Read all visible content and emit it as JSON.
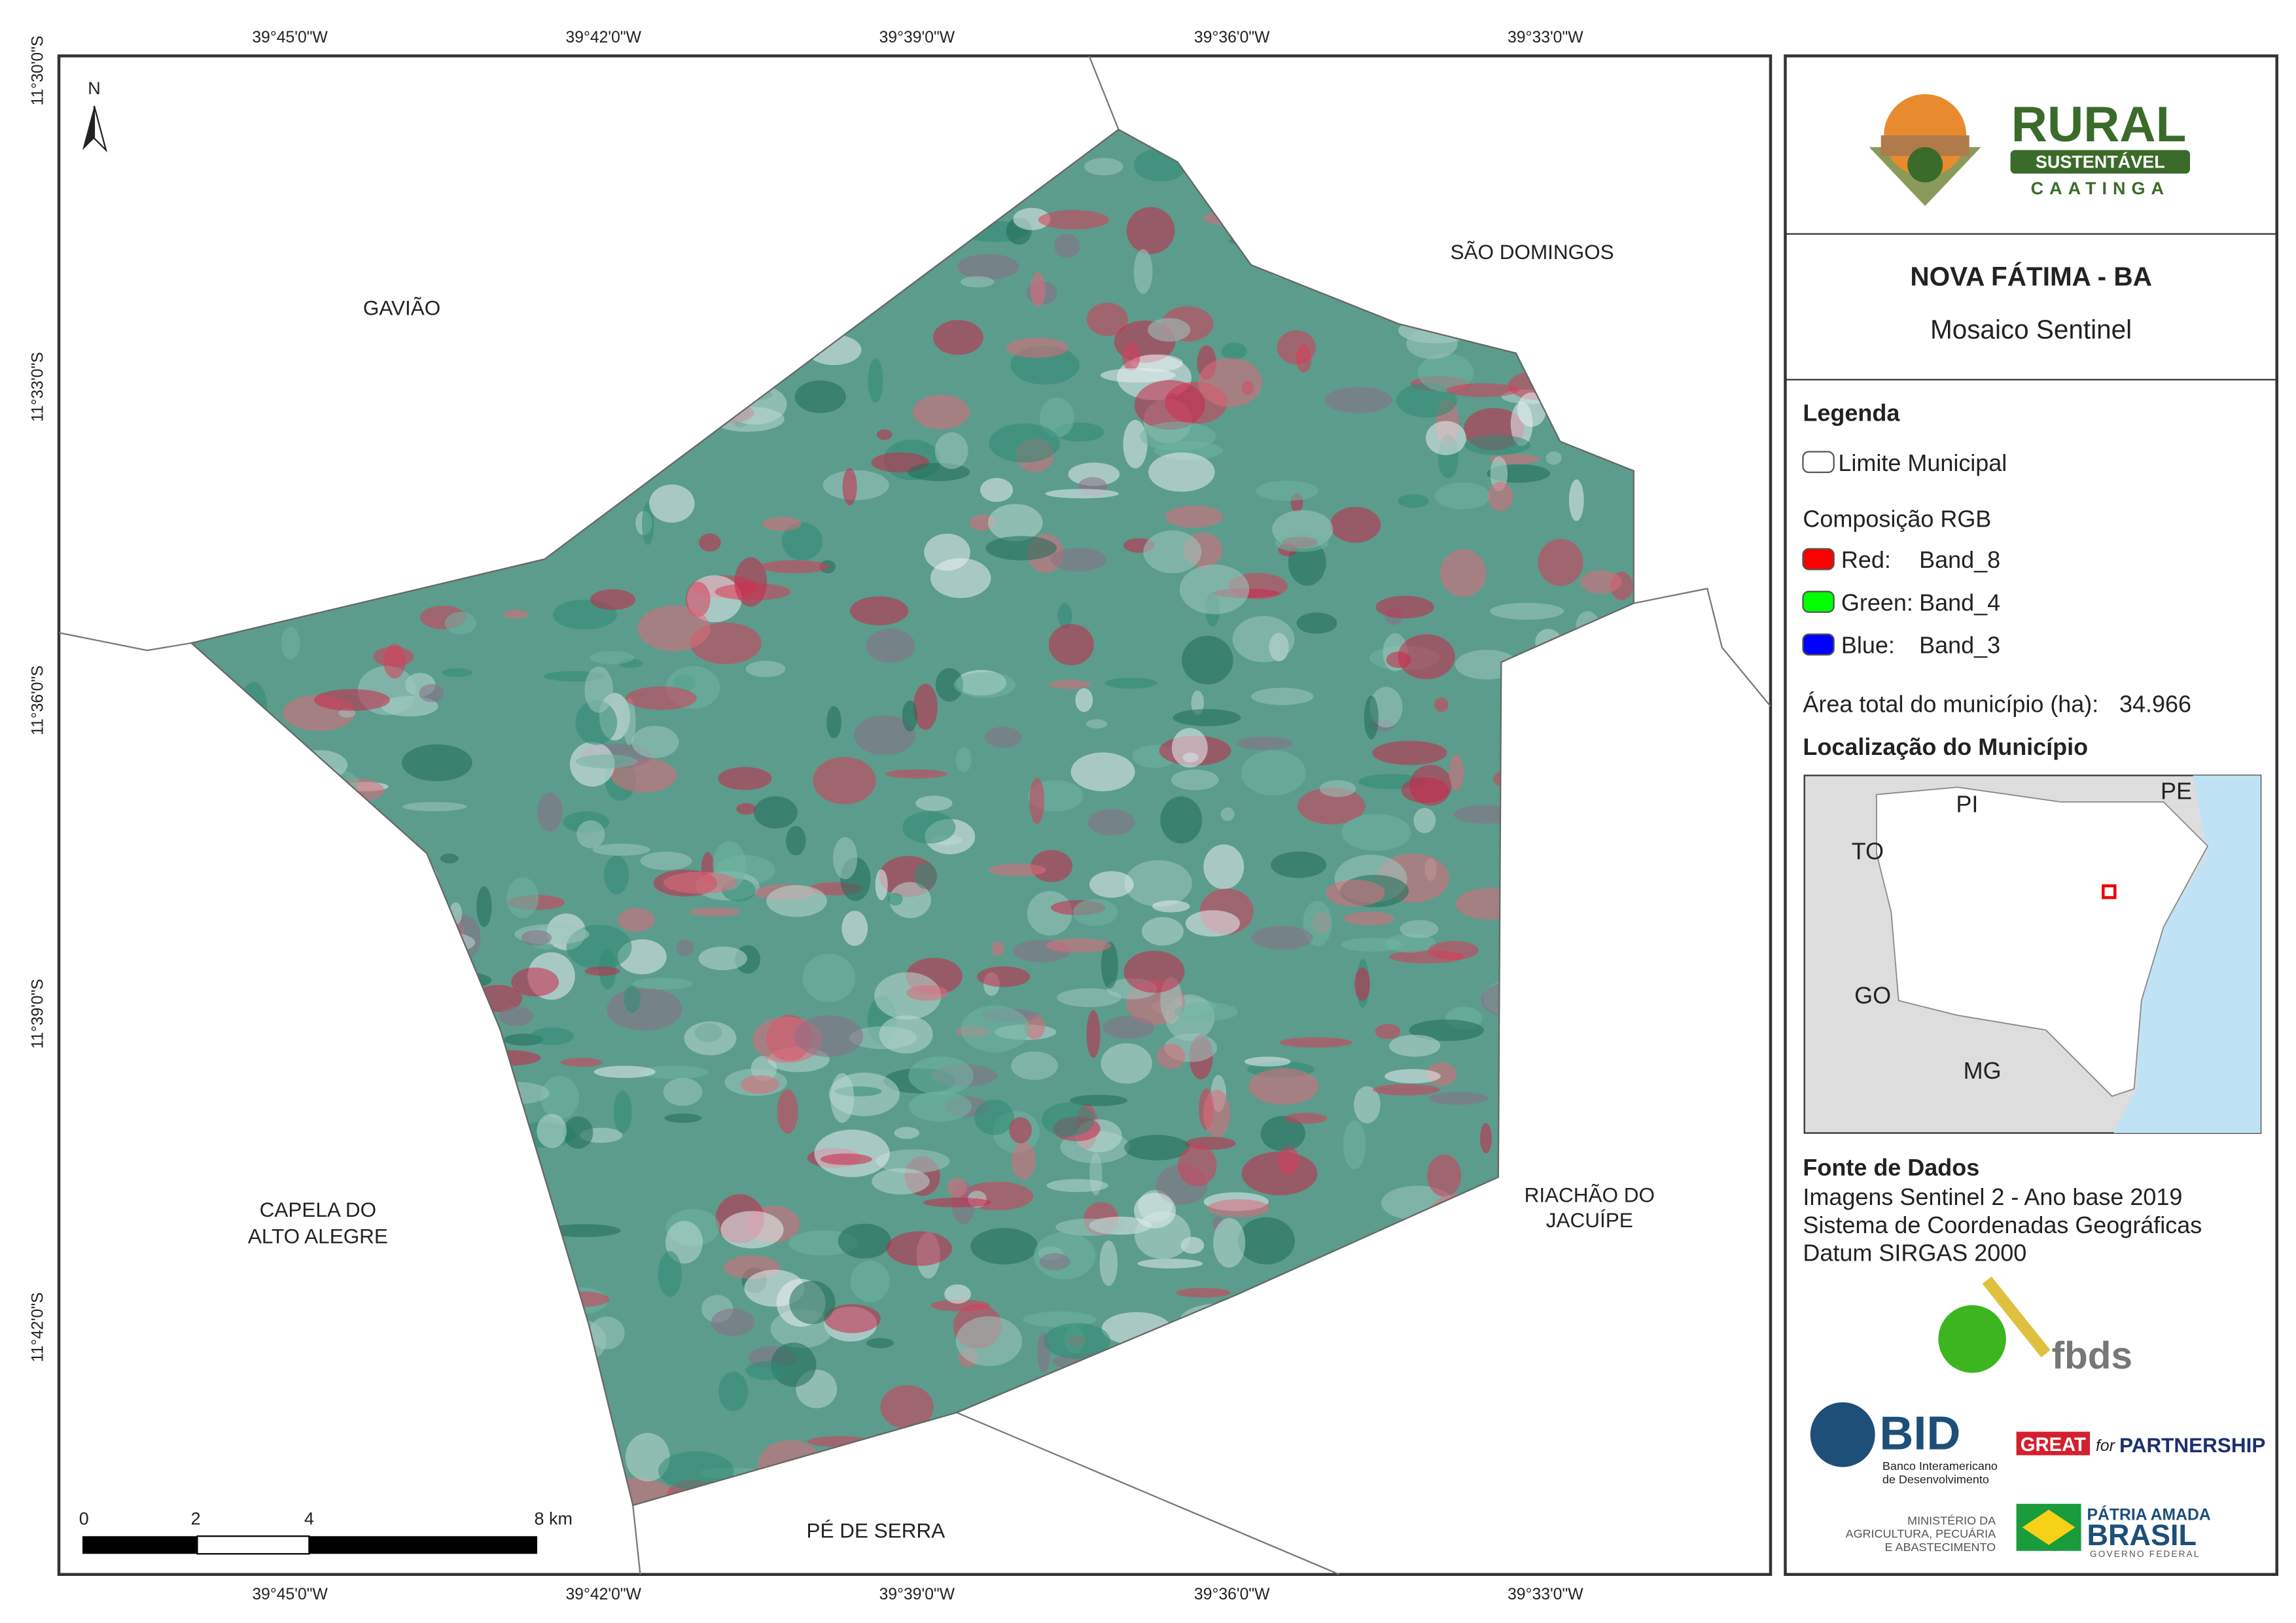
{
  "map": {
    "north": "N",
    "lon_labels": [
      "39°45'0\"W",
      "39°42'0\"W",
      "39°39'0\"W",
      "39°36'0\"W",
      "39°33'0\"W"
    ],
    "lat_labels": [
      "11°30'0\"S",
      "11°33'0\"S",
      "11°36'0\"S",
      "11°39'0\"S",
      "11°42'0\"S"
    ],
    "neighbors": {
      "gaviao": "GAVIÃO",
      "sao_domingos": "SÃO DOMINGOS",
      "capela": [
        "CAPELA DO",
        "ALTO ALEGRE"
      ],
      "riachao": [
        "RIACHÃO DO",
        "JACUÍPE"
      ],
      "pe_de_serra": "PÉ DE SERRA"
    },
    "scale": [
      "0",
      "2",
      "4",
      "8 km"
    ]
  },
  "panel": {
    "logo": {
      "rural": "RURAL",
      "sustentavel": "SUSTENTÁVEL",
      "caatinga": "CAATINGA"
    },
    "title": "NOVA FÁTIMA - BA",
    "subtitle": "Mosaico Sentinel",
    "legend": {
      "heading": "Legenda",
      "limit": "Limite Municipal",
      "rgb": "Composição RGB",
      "bands": [
        [
          "Red:",
          "Band_8"
        ],
        [
          "Green:",
          "Band_4"
        ],
        [
          "Blue:",
          "Band_3"
        ]
      ],
      "area_label": "Área total do município (ha):",
      "area": "34.966"
    },
    "location": {
      "heading": "Localização do Município",
      "states": [
        "PI",
        "PE",
        "TO",
        "GO",
        "MG"
      ]
    },
    "sources": {
      "heading": "Fonte de Dados",
      "lines": [
        "Imagens Sentinel 2 - Ano base 2019",
        "Sistema de Coordenadas Geográficas",
        "Datum SIRGAS 2000"
      ]
    },
    "logos": {
      "fbds": "fbds",
      "bid": "BID",
      "bid_sub": [
        "Banco Interamericano",
        "de Desenvolvimento"
      ],
      "great": "GREAT",
      "for": "for",
      "partnership": "PARTNERSHIP",
      "ministry": [
        "MINISTÉRIO DA",
        "AGRICULTURA, PECUÁRIA",
        "E ABASTECIMENTO"
      ],
      "patria": "PÁTRIA AMADA",
      "brasil": "BRASIL",
      "governo": "GOVERNO FEDERAL"
    }
  }
}
